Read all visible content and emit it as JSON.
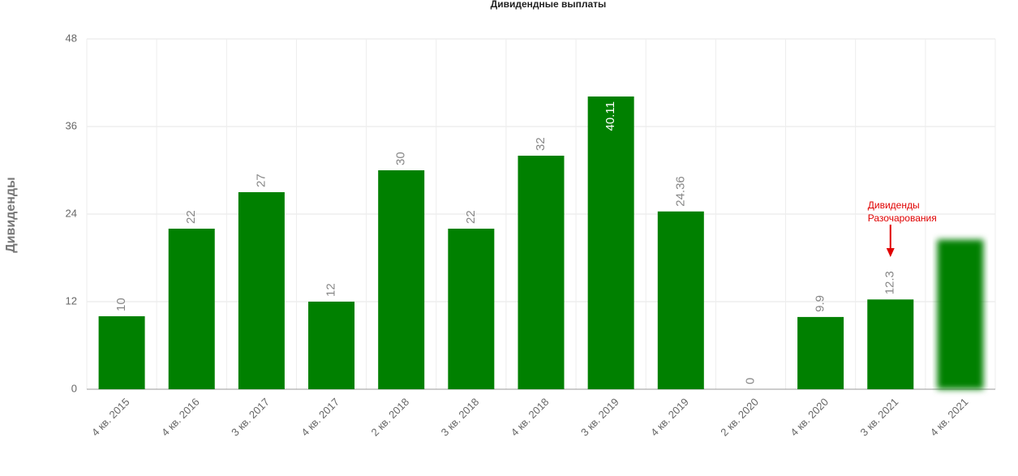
{
  "chart_data": {
    "type": "bar",
    "title": "Дивидендные выплаты",
    "y_label": "Дивиденды",
    "categories": [
      "4 кв. 2015",
      "4 кв. 2016",
      "3 кв. 2017",
      "4 кв. 2017",
      "2 кв. 2018",
      "3 кв. 2018",
      "4 кв. 2018",
      "3 кв. 2019",
      "4 кв. 2019",
      "2 кв. 2020",
      "4 кв. 2020",
      "3 кв. 2021",
      "4 кв. 2021"
    ],
    "values": [
      10,
      22,
      27,
      12,
      30,
      22,
      32,
      40.11,
      24.36,
      0,
      9.9,
      12.3,
      20.5
    ],
    "value_labels": [
      "10",
      "22",
      "27",
      "12",
      "30",
      "22",
      "32",
      "40.11",
      "24.36",
      "0",
      "9.9",
      "12.3",
      null
    ],
    "color": "#008000",
    "ylim": [
      0,
      48
    ],
    "yticks": [
      0,
      12,
      24,
      36,
      48
    ],
    "grid": true,
    "annotation": {
      "lines": [
        "Дивиденды",
        "Разочарования"
      ],
      "category_index": 11,
      "color": "#e00000"
    }
  }
}
